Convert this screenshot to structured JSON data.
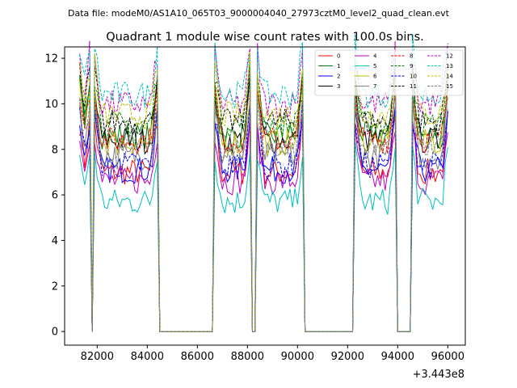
{
  "figure": {
    "suptitle": "Data file: modeM0/AS1A10_065T03_9000004040_27973cztM0_level2_quad_clean.evt"
  },
  "chart_data": {
    "type": "line",
    "title": "Quadrant 1 module wise count rates with 100.0s bins.",
    "xlabel": "",
    "ylabel": "",
    "x_offset_label": "+3.443e8",
    "xlim": [
      80700,
      96700
    ],
    "ylim": [
      -0.6,
      12.5
    ],
    "x_ticks": [
      82000,
      84000,
      86000,
      88000,
      90000,
      92000,
      94000,
      96000
    ],
    "x_tick_labels": [
      "82000",
      "84000",
      "86000",
      "88000",
      "90000",
      "92000",
      "94000",
      "96000"
    ],
    "y_ticks": [
      0,
      2,
      4,
      6,
      8,
      10,
      12
    ],
    "y_tick_labels": [
      "0",
      "2",
      "4",
      "6",
      "8",
      "10",
      "12"
    ],
    "grid": false,
    "legend_position": "top-right",
    "gti": [
      [
        81300,
        81700
      ],
      [
        81900,
        84400
      ],
      [
        86700,
        88100
      ],
      [
        88400,
        90200
      ],
      [
        92300,
        93900
      ],
      [
        94600,
        96000
      ]
    ],
    "bin_width": 100,
    "series": [
      {
        "name": "0",
        "color": "#ff0000",
        "dash": "solid",
        "level": 7.0
      },
      {
        "name": "1",
        "color": "#008000",
        "dash": "solid",
        "level": 8.6
      },
      {
        "name": "2",
        "color": "#0000ff",
        "dash": "solid",
        "level": 7.1
      },
      {
        "name": "3",
        "color": "#000000",
        "dash": "solid",
        "level": 8.4
      },
      {
        "name": "4",
        "color": "#bf00bf",
        "dash": "solid",
        "level": 6.6
      },
      {
        "name": "5",
        "color": "#00bfbf",
        "dash": "solid",
        "level": 5.7
      },
      {
        "name": "6",
        "color": "#bfbf00",
        "dash": "solid",
        "level": 8.3
      },
      {
        "name": "7",
        "color": "#808080",
        "dash": "solid",
        "level": 7.7
      },
      {
        "name": "8",
        "color": "#ff0000",
        "dash": "dashed",
        "level": 8.4
      },
      {
        "name": "9",
        "color": "#008000",
        "dash": "dashed",
        "level": 9.1
      },
      {
        "name": "10",
        "color": "#0000ff",
        "dash": "dashed",
        "level": 7.3
      },
      {
        "name": "11",
        "color": "#000000",
        "dash": "dashed",
        "level": 9.2
      },
      {
        "name": "12",
        "color": "#bf00bf",
        "dash": "dashed",
        "level": 10.0
      },
      {
        "name": "13",
        "color": "#00bfbf",
        "dash": "dashed",
        "level": 10.4
      },
      {
        "name": "14",
        "color": "#bfbf00",
        "dash": "dashed",
        "level": 9.5
      },
      {
        "name": "15",
        "color": "#808080",
        "dash": "dashed",
        "level": 8.0
      }
    ]
  }
}
